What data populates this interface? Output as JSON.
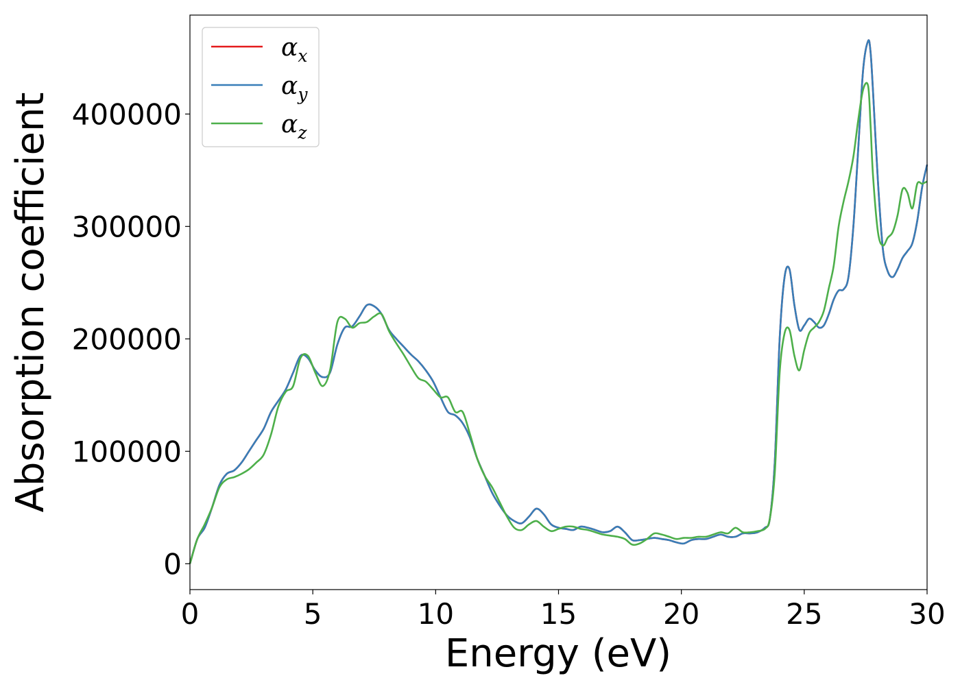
{
  "chart_data": {
    "type": "line",
    "title": "",
    "xlabel": "Energy (eV)",
    "ylabel": "Absorption coefficient",
    "xlim": [
      0,
      30
    ],
    "ylim": [
      -23000,
      488000
    ],
    "xticks": [
      0,
      5,
      10,
      15,
      20,
      25,
      30
    ],
    "xtick_labels": [
      "0",
      "5",
      "10",
      "15",
      "20",
      "25",
      "30"
    ],
    "yticks": [
      0,
      100000,
      200000,
      300000,
      400000
    ],
    "ytick_labels": [
      "0",
      "100000",
      "200000",
      "300000",
      "400000"
    ],
    "grid": false,
    "legend_position": "top-left",
    "series": [
      {
        "name": "α_x",
        "legend_symbol": "α",
        "legend_sub": "x",
        "color": "#e41a1c",
        "x": [
          0,
          0.3,
          0.6,
          0.9,
          1.2,
          1.5,
          1.8,
          2.1,
          2.4,
          2.7,
          3.0,
          3.3,
          3.6,
          3.9,
          4.2,
          4.5,
          4.8,
          5.1,
          5.4,
          5.7,
          6.0,
          6.3,
          6.6,
          6.9,
          7.2,
          7.5,
          7.8,
          8.1,
          8.4,
          8.7,
          9.0,
          9.3,
          9.6,
          9.9,
          10.2,
          10.5,
          10.8,
          11.1,
          11.4,
          11.7,
          12.0,
          12.3,
          12.6,
          12.9,
          13.2,
          13.5,
          13.8,
          14.1,
          14.4,
          14.7,
          15.0,
          15.3,
          15.6,
          15.9,
          16.2,
          16.5,
          16.8,
          17.1,
          17.4,
          17.7,
          18.0,
          18.3,
          18.6,
          18.9,
          19.2,
          19.5,
          19.8,
          20.1,
          20.4,
          20.7,
          21.0,
          21.3,
          21.6,
          21.9,
          22.2,
          22.5,
          22.8,
          23.1,
          23.4,
          23.6,
          23.8,
          24.0,
          24.2,
          24.4,
          24.6,
          24.8,
          25.0,
          25.2,
          25.4,
          25.6,
          25.8,
          26.0,
          26.2,
          26.4,
          26.6,
          26.8,
          27.0,
          27.2,
          27.4,
          27.6,
          27.7,
          27.8,
          28.0,
          28.2,
          28.4,
          28.6,
          28.8,
          29.0,
          29.2,
          29.4,
          29.6,
          29.8,
          30.0
        ],
        "values": [
          0,
          22000,
          32000,
          50000,
          70000,
          80000,
          83000,
          90000,
          100000,
          110000,
          120000,
          135000,
          145000,
          155000,
          170000,
          185000,
          183000,
          172000,
          166000,
          170000,
          195000,
          210000,
          211000,
          220000,
          230000,
          229000,
          222000,
          208000,
          200000,
          193000,
          186000,
          180000,
          172000,
          162000,
          148000,
          135000,
          132000,
          125000,
          112000,
          93000,
          78000,
          63000,
          52000,
          43000,
          38000,
          36000,
          42000,
          49000,
          44000,
          35000,
          32000,
          31000,
          30000,
          33000,
          32000,
          30000,
          28000,
          29000,
          33000,
          28000,
          21000,
          21000,
          22000,
          23000,
          22000,
          21000,
          19000,
          18000,
          21000,
          22000,
          22000,
          24000,
          26000,
          24000,
          24000,
          27000,
          27000,
          28000,
          32000,
          40000,
          90000,
          200000,
          255000,
          262000,
          230000,
          208000,
          212000,
          218000,
          215000,
          210000,
          212000,
          222000,
          235000,
          243000,
          244000,
          255000,
          300000,
          370000,
          440000,
          465000,
          455000,
          420000,
          340000,
          280000,
          260000,
          255000,
          262000,
          272000,
          278000,
          285000,
          305000,
          335000,
          355000
        ]
      },
      {
        "name": "α_y",
        "legend_symbol": "α",
        "legend_sub": "y",
        "color": "#377eb8",
        "x": [
          0,
          0.3,
          0.6,
          0.9,
          1.2,
          1.5,
          1.8,
          2.1,
          2.4,
          2.7,
          3.0,
          3.3,
          3.6,
          3.9,
          4.2,
          4.5,
          4.8,
          5.1,
          5.4,
          5.7,
          6.0,
          6.3,
          6.6,
          6.9,
          7.2,
          7.5,
          7.8,
          8.1,
          8.4,
          8.7,
          9.0,
          9.3,
          9.6,
          9.9,
          10.2,
          10.5,
          10.8,
          11.1,
          11.4,
          11.7,
          12.0,
          12.3,
          12.6,
          12.9,
          13.2,
          13.5,
          13.8,
          14.1,
          14.4,
          14.7,
          15.0,
          15.3,
          15.6,
          15.9,
          16.2,
          16.5,
          16.8,
          17.1,
          17.4,
          17.7,
          18.0,
          18.3,
          18.6,
          18.9,
          19.2,
          19.5,
          19.8,
          20.1,
          20.4,
          20.7,
          21.0,
          21.3,
          21.6,
          21.9,
          22.2,
          22.5,
          22.8,
          23.1,
          23.4,
          23.6,
          23.8,
          24.0,
          24.2,
          24.4,
          24.6,
          24.8,
          25.0,
          25.2,
          25.4,
          25.6,
          25.8,
          26.0,
          26.2,
          26.4,
          26.6,
          26.8,
          27.0,
          27.2,
          27.4,
          27.6,
          27.7,
          27.8,
          28.0,
          28.2,
          28.4,
          28.6,
          28.8,
          29.0,
          29.2,
          29.4,
          29.6,
          29.8,
          30.0
        ],
        "values": [
          0,
          22000,
          32000,
          50000,
          70000,
          80000,
          83000,
          90000,
          100000,
          110000,
          120000,
          135000,
          145000,
          155000,
          170000,
          185000,
          183000,
          172000,
          166000,
          170000,
          195000,
          210000,
          211000,
          220000,
          230000,
          229000,
          222000,
          208000,
          200000,
          193000,
          186000,
          180000,
          172000,
          162000,
          148000,
          135000,
          132000,
          125000,
          112000,
          93000,
          78000,
          63000,
          52000,
          43000,
          38000,
          36000,
          42000,
          49000,
          44000,
          35000,
          32000,
          31000,
          30000,
          33000,
          32000,
          30000,
          28000,
          29000,
          33000,
          28000,
          21000,
          21000,
          22000,
          23000,
          22000,
          21000,
          19000,
          18000,
          21000,
          22000,
          22000,
          24000,
          26000,
          24000,
          24000,
          27000,
          27000,
          28000,
          32000,
          40000,
          90000,
          200000,
          255000,
          262000,
          230000,
          208000,
          212000,
          218000,
          215000,
          210000,
          212000,
          222000,
          235000,
          243000,
          244000,
          255000,
          300000,
          370000,
          440000,
          465000,
          455000,
          420000,
          340000,
          280000,
          260000,
          255000,
          262000,
          272000,
          278000,
          285000,
          305000,
          335000,
          355000
        ]
      },
      {
        "name": "α_z",
        "legend_symbol": "α",
        "legend_sub": "z",
        "color": "#4daf4a",
        "x": [
          0,
          0.3,
          0.6,
          0.9,
          1.2,
          1.5,
          1.8,
          2.1,
          2.4,
          2.7,
          3.0,
          3.3,
          3.6,
          3.9,
          4.2,
          4.5,
          4.8,
          5.1,
          5.4,
          5.7,
          6.0,
          6.3,
          6.6,
          6.9,
          7.2,
          7.5,
          7.8,
          8.1,
          8.4,
          8.7,
          9.0,
          9.3,
          9.6,
          9.9,
          10.2,
          10.5,
          10.8,
          11.1,
          11.4,
          11.7,
          12.0,
          12.3,
          12.6,
          12.9,
          13.2,
          13.5,
          13.8,
          14.1,
          14.4,
          14.7,
          15.0,
          15.3,
          15.6,
          15.9,
          16.2,
          16.5,
          16.8,
          17.1,
          17.4,
          17.7,
          18.0,
          18.3,
          18.6,
          18.9,
          19.2,
          19.5,
          19.8,
          20.1,
          20.4,
          20.7,
          21.0,
          21.3,
          21.6,
          21.9,
          22.2,
          22.5,
          22.8,
          23.1,
          23.4,
          23.6,
          23.8,
          24.0,
          24.2,
          24.4,
          24.6,
          24.8,
          25.0,
          25.2,
          25.4,
          25.6,
          25.8,
          26.0,
          26.2,
          26.4,
          26.6,
          26.8,
          27.0,
          27.2,
          27.4,
          27.6,
          27.7,
          27.8,
          28.0,
          28.2,
          28.4,
          28.6,
          28.8,
          29.0,
          29.2,
          29.4,
          29.6,
          29.8,
          30.0
        ],
        "values": [
          0,
          22000,
          35000,
          50000,
          68000,
          75000,
          77000,
          80000,
          84000,
          90000,
          97000,
          115000,
          140000,
          153000,
          158000,
          183000,
          185000,
          170000,
          158000,
          172000,
          215000,
          218000,
          210000,
          214000,
          215000,
          220000,
          222000,
          207000,
          196000,
          186000,
          175000,
          165000,
          162000,
          155000,
          148000,
          148000,
          135000,
          135000,
          115000,
          93000,
          78000,
          68000,
          55000,
          42000,
          32000,
          30000,
          35000,
          38000,
          33000,
          29000,
          31000,
          33000,
          33000,
          31000,
          30000,
          28000,
          26000,
          25000,
          24000,
          22000,
          17000,
          18000,
          22000,
          27000,
          26000,
          24000,
          22000,
          23000,
          23000,
          24000,
          24000,
          26000,
          28000,
          27000,
          32000,
          28000,
          28000,
          29000,
          31000,
          40000,
          80000,
          170000,
          205000,
          208000,
          185000,
          172000,
          190000,
          205000,
          210000,
          215000,
          225000,
          245000,
          265000,
          300000,
          322000,
          340000,
          362000,
          395000,
          422000,
          425000,
          390000,
          345000,
          295000,
          283000,
          290000,
          295000,
          310000,
          333000,
          330000,
          316000,
          338000,
          338000,
          340000
        ]
      }
    ]
  }
}
